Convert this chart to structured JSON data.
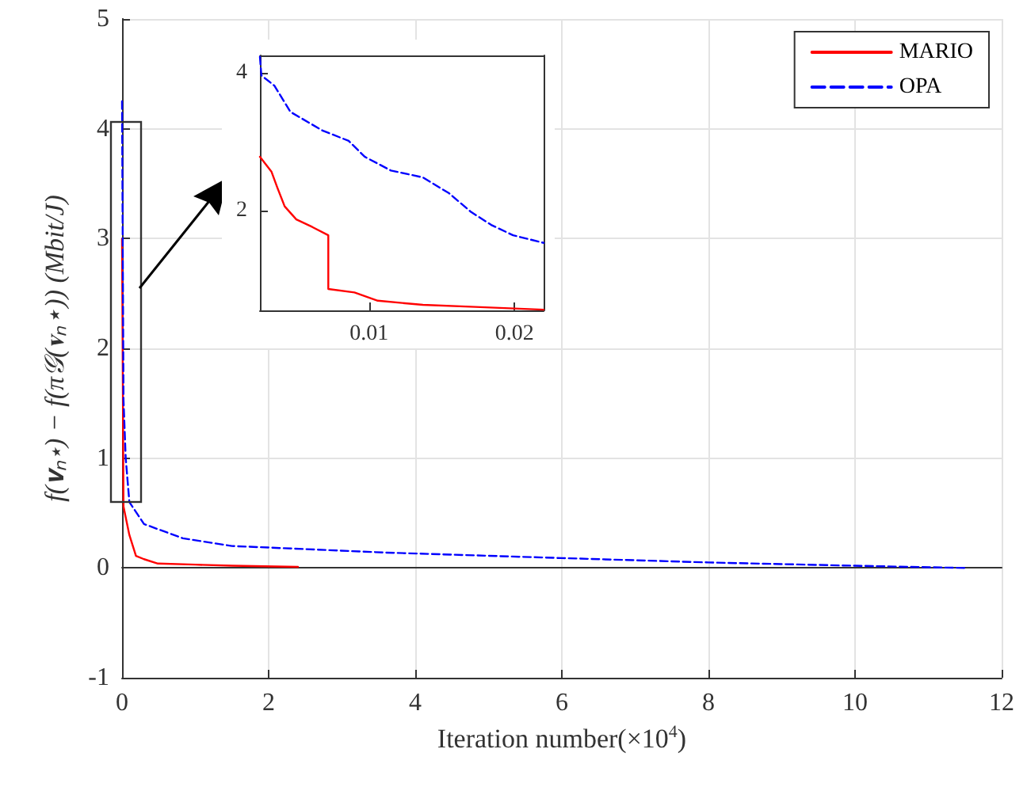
{
  "chart_data": [
    {
      "type": "line",
      "xlabel": "Iteration number(×10$^{4}$)",
      "ylabel": "f(𝐯ₙ⋆) − f(π𝒢(𝐯ₙ⋆)) (Mbit/J)",
      "xlim": [
        0,
        12
      ],
      "ylim": [
        -1,
        5
      ],
      "xticks": [
        0,
        2,
        4,
        6,
        8,
        10,
        12
      ],
      "yticks": [
        -1,
        0,
        1,
        2,
        3,
        4,
        5
      ],
      "grid": true,
      "legend": "top right",
      "marker": "none",
      "series": [
        {
          "name": "MARIO",
          "color": "#ff0000",
          "line_style": "solid",
          "x": [
            0,
            0.02,
            0.1,
            0.19,
            0.3,
            0.49,
            1.0,
            1.5,
            2.4
          ],
          "values": [
            3.0,
            0.56,
            0.3,
            0.11,
            0.08,
            0.04,
            0.03,
            0.02,
            0.01
          ]
        },
        {
          "name": "OPA",
          "color": "#0000ff",
          "line_style": "dashed",
          "x": [
            0,
            0.02,
            0.05,
            0.1,
            0.3,
            0.83,
            1.5,
            3.6,
            6,
            8,
            10,
            11.5
          ],
          "values": [
            4.25,
            1.53,
            1.0,
            0.6,
            0.4,
            0.27,
            0.2,
            0.14,
            0.09,
            0.05,
            0.02,
            0.0
          ]
        }
      ]
    },
    {
      "type": "line",
      "xlim": [
        0.0025,
        0.022
      ],
      "ylim": [
        0.55,
        4.25
      ],
      "xticks": [
        0.01,
        0.02
      ],
      "yticks": [
        2,
        4
      ],
      "grid": false,
      "legend": false,
      "marker": "none",
      "series": [
        {
          "color": "#ff0000",
          "line_style": "solid",
          "x": [
            0.0025,
            0.0033,
            0.0037,
            0.0042,
            0.005,
            0.0061,
            0.0072,
            0.0072,
            0.009,
            0.0106,
            0.0137,
            0.0173,
            0.022
          ],
          "values": [
            2.78,
            2.56,
            2.33,
            2.06,
            1.87,
            1.76,
            1.64,
            0.86,
            0.81,
            0.69,
            0.63,
            0.6,
            0.56
          ]
        },
        {
          "color": "#0000ff",
          "line_style": "dashed",
          "x": [
            0.0025,
            0.0026,
            0.0035,
            0.0046,
            0.0068,
            0.0086,
            0.0097,
            0.0115,
            0.0137,
            0.0155,
            0.017,
            0.0184,
            0.0199,
            0.022
          ],
          "values": [
            4.23,
            3.96,
            3.81,
            3.43,
            3.16,
            3.01,
            2.78,
            2.58,
            2.48,
            2.25,
            1.98,
            1.79,
            1.64,
            1.53
          ]
        }
      ]
    }
  ]
}
